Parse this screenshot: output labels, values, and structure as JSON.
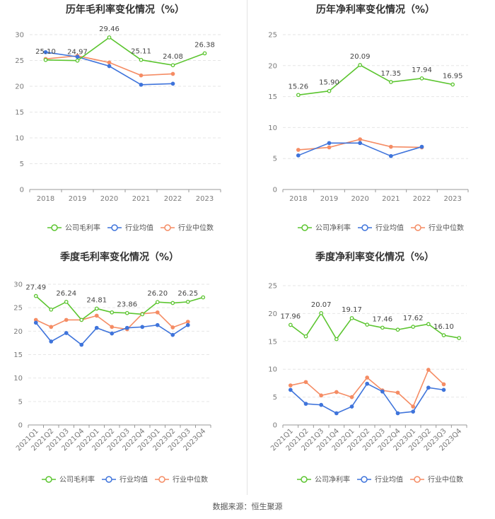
{
  "colors": {
    "company": "#5cc530",
    "industry_avg": "#3f74db",
    "industry_median": "#f58c64",
    "grid": "#e6e6e6",
    "axis": "#999999"
  },
  "source": "数据来源：恒生聚源",
  "chart_data": [
    {
      "type": "line",
      "title": "历年毛利率变化情况（%）",
      "categories": [
        "2018",
        "2019",
        "2020",
        "2021",
        "2022",
        "2023"
      ],
      "ylim": [
        0,
        30
      ],
      "yticks": [
        0,
        5,
        10,
        15,
        20,
        25,
        30
      ],
      "series": [
        {
          "name": "公司毛利率",
          "key": "company",
          "values": [
            25.1,
            24.97,
            29.46,
            25.11,
            24.08,
            26.38
          ],
          "labels": [
            "25.10",
            "24.97",
            "29.46",
            "25.11",
            "24.08",
            "26.38"
          ]
        },
        {
          "name": "行业均值",
          "key": "industry_avg",
          "values": [
            26.6,
            25.7,
            23.9,
            20.3,
            20.5,
            null
          ]
        },
        {
          "name": "行业中位数",
          "key": "industry_median",
          "values": [
            25.3,
            25.9,
            24.6,
            22.1,
            22.4,
            null
          ]
        }
      ]
    },
    {
      "type": "line",
      "title": "历年净利率变化情况（%）",
      "categories": [
        "2018",
        "2019",
        "2020",
        "2021",
        "2022",
        "2023"
      ],
      "ylim": [
        0,
        25
      ],
      "yticks": [
        0,
        5,
        10,
        15,
        20,
        25
      ],
      "series": [
        {
          "name": "公司净利率",
          "key": "company",
          "values": [
            15.26,
            15.9,
            20.09,
            17.35,
            17.94,
            16.95
          ],
          "labels": [
            "15.26",
            "15.90",
            "20.09",
            "17.35",
            "17.94",
            "16.95"
          ]
        },
        {
          "name": "行业均值",
          "key": "industry_avg",
          "values": [
            5.5,
            7.5,
            7.5,
            5.4,
            6.9,
            null
          ]
        },
        {
          "name": "行业中位数",
          "key": "industry_median",
          "values": [
            6.4,
            6.8,
            8.1,
            6.9,
            6.8,
            null
          ]
        }
      ]
    },
    {
      "type": "line",
      "title": "季度毛利率变化情况（%）",
      "categories": [
        "2021Q1",
        "2021Q2",
        "2021Q3",
        "2021Q4",
        "2022Q1",
        "2022Q2",
        "2022Q3",
        "2022Q4",
        "2023Q1",
        "2023Q2",
        "2023Q3",
        "2023Q4"
      ],
      "ylim": [
        0,
        30
      ],
      "yticks": [
        0,
        5,
        10,
        15,
        20,
        25,
        30
      ],
      "series": [
        {
          "name": "公司毛利率",
          "key": "company",
          "values": [
            27.49,
            24.6,
            26.24,
            22.4,
            24.81,
            24.0,
            23.86,
            23.6,
            26.2,
            26.0,
            26.25,
            27.2
          ],
          "labels": [
            "27.49",
            "",
            "26.24",
            "",
            "24.81",
            "",
            "23.86",
            "",
            "26.20",
            "",
            "26.25",
            ""
          ]
        },
        {
          "name": "行业均值",
          "key": "industry_avg",
          "values": [
            21.8,
            17.8,
            19.6,
            17.1,
            20.7,
            19.5,
            20.7,
            20.9,
            21.3,
            19.2,
            21.3,
            null
          ]
        },
        {
          "name": "行业中位数",
          "key": "industry_median",
          "values": [
            22.4,
            20.9,
            22.4,
            22.4,
            23.3,
            20.9,
            20.4,
            23.7,
            24.0,
            20.8,
            22.0,
            null
          ]
        }
      ]
    },
    {
      "type": "line",
      "title": "季度净利率变化情况（%）",
      "categories": [
        "2021Q1",
        "2021Q2",
        "2021Q3",
        "2021Q4",
        "2022Q1",
        "2022Q2",
        "2022Q3",
        "2022Q4",
        "2023Q1",
        "2023Q2",
        "2023Q3",
        "2023Q4"
      ],
      "ylim": [
        0,
        25
      ],
      "yticks": [
        0,
        5,
        10,
        15,
        20,
        25
      ],
      "series": [
        {
          "name": "公司净利率",
          "key": "company",
          "values": [
            17.96,
            15.9,
            20.07,
            15.4,
            19.17,
            18.0,
            17.46,
            17.1,
            17.62,
            18.1,
            16.1,
            15.6
          ],
          "labels": [
            "17.96",
            "",
            "20.07",
            "",
            "19.17",
            "",
            "17.46",
            "",
            "17.62",
            "",
            "16.10",
            ""
          ]
        },
        {
          "name": "行业均值",
          "key": "industry_avg",
          "values": [
            6.3,
            3.8,
            3.6,
            2.1,
            3.3,
            7.4,
            6.0,
            2.1,
            2.4,
            6.7,
            6.3,
            null
          ]
        },
        {
          "name": "行业中位数",
          "key": "industry_median",
          "values": [
            7.1,
            7.7,
            5.3,
            5.9,
            5.0,
            8.5,
            6.2,
            5.8,
            3.3,
            9.9,
            7.3,
            null
          ]
        }
      ]
    }
  ]
}
